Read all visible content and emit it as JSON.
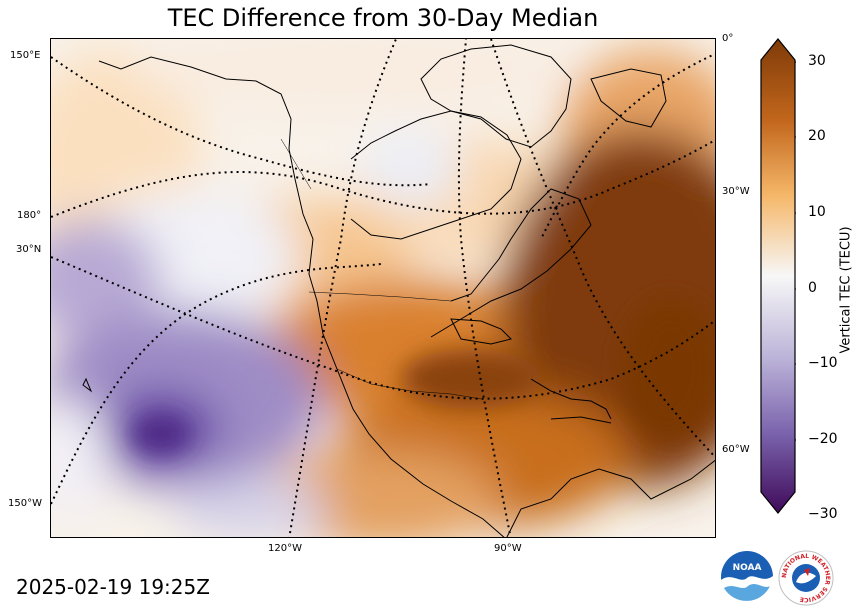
{
  "title": "TEC Difference from 30-Day Median",
  "timestamp": "2025-02-19 19:25Z",
  "colorbar": {
    "label": "Vertical TEC (TECU)",
    "ticks": [
      "30",
      "20",
      "10",
      "0",
      "−10",
      "−20",
      "−30"
    ],
    "min": -30,
    "max": 30,
    "negative_color": "#3f0a5a",
    "neutral_color": "#f7f7f7",
    "positive_color": "#7f3b08"
  },
  "grid_labels": {
    "left": [
      "150°E",
      "180°",
      "30°N",
      "150°W"
    ],
    "right": [
      "0°",
      "30°W",
      "60°W"
    ],
    "bottom": [
      "120°W",
      "90°W"
    ]
  },
  "logos": {
    "noaa": "NOAA",
    "nws": "NATIONAL WEATHER SERVICE"
  }
}
